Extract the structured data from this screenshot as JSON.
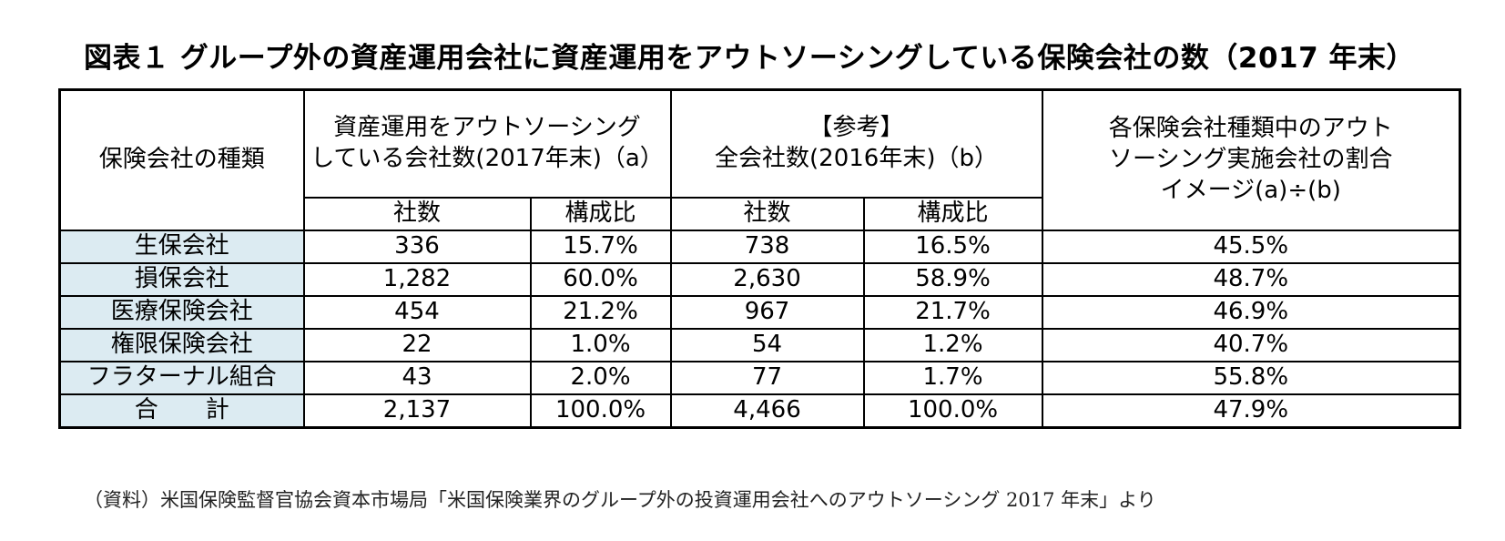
{
  "title": "図表１ グループ外の資産運用会社に資産運用をアウトソーシングしている保険会社の数（2017 年末）",
  "table": {
    "col_type": "保険会社の種類",
    "group_a_line1": "資産運用をアウトソーシング",
    "group_a_line2": "している会社数(2017年末)（a）",
    "group_b_line1": "【参考】",
    "group_b_line2": "全会社数(2016年末)（b）",
    "ratio_line1": "各保険会社種類中のアウト",
    "ratio_line2": "ソーシング実施会社の割合",
    "ratio_line3": "イメージ(a)÷(b)",
    "sub_count_a": "社数",
    "sub_share_a": "構成比",
    "sub_count_b": "社数",
    "sub_share_b": "構成比",
    "rows": [
      {
        "type": "生保会社",
        "a_count": "336",
        "a_share": "15.7%",
        "b_count": "738",
        "b_share": "16.5%",
        "ratio": "45.5%"
      },
      {
        "type": "損保会社",
        "a_count": "1,282",
        "a_share": "60.0%",
        "b_count": "2,630",
        "b_share": "58.9%",
        "ratio": "48.7%"
      },
      {
        "type": "医療保険会社",
        "a_count": "454",
        "a_share": "21.2%",
        "b_count": "967",
        "b_share": "21.7%",
        "ratio": "46.9%"
      },
      {
        "type": "権限保険会社",
        "a_count": "22",
        "a_share": "1.0%",
        "b_count": "54",
        "b_share": "1.2%",
        "ratio": "40.7%"
      },
      {
        "type": "フラターナル組合",
        "a_count": "43",
        "a_share": "2.0%",
        "b_count": "77",
        "b_share": "1.7%",
        "ratio": "55.8%"
      },
      {
        "type": "合　　計",
        "a_count": "2,137",
        "a_share": "100.0%",
        "b_count": "4,466",
        "b_share": "100.0%",
        "ratio": "47.9%"
      }
    ]
  },
  "note": "（資料）米国保険監督官協会資本市場局「米国保険業界のグループ外の投資運用会社へのアウトソーシング 2017 年末」より",
  "colors": {
    "row_label_bg": "#dcebf2",
    "border": "#000000"
  }
}
